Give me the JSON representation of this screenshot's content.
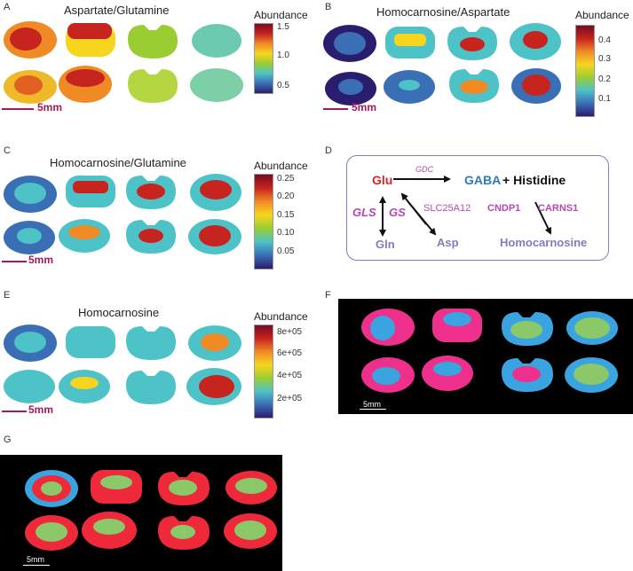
{
  "panels": {
    "A": {
      "label": "A",
      "title": "Aspartate/Glutamine",
      "legend_title": "Abundance",
      "ticks": [
        "1.5",
        "1.0",
        "0.5"
      ],
      "scale": "5mm"
    },
    "B": {
      "label": "B",
      "title": "Homocarnosine/Aspartate",
      "legend_title": "Abundance",
      "ticks": [
        "0.4",
        "0.3",
        "0.2",
        "0.1"
      ],
      "scale": "5mm"
    },
    "C": {
      "label": "C",
      "title": "Homocarnosine/Glutamine",
      "legend_title": "Abundance",
      "ticks": [
        "0.25",
        "0.20",
        "0.15",
        "0.10",
        "0.05"
      ],
      "scale": "5mm"
    },
    "D": {
      "label": "D"
    },
    "E": {
      "label": "E",
      "title": "Homocarnosine",
      "legend_title": "Abundance",
      "ticks": [
        "8e+05",
        "6e+05",
        "4e+05",
        "2e+05"
      ],
      "scale": "5mm"
    },
    "F": {
      "label": "F",
      "scale": "5mm"
    },
    "G": {
      "label": "G",
      "scale": "5mm"
    }
  },
  "pathway": {
    "glu": "Glu",
    "gaba": "GABA",
    "plus_histidine": "+ Histidine",
    "gln": "Gln",
    "asp": "Asp",
    "homocarnosine": "Homocarnosine",
    "gdc": "GDC",
    "gls": "GLS",
    "gs": "GS",
    "slc": "SLC25A12",
    "cndp1": "CNDP1",
    "carns1": "CARNS1"
  },
  "colors": {
    "colorbar": [
      "#7a0a22",
      "#c7241f",
      "#f08a25",
      "#f7d51f",
      "#9acd32",
      "#4ec3c7",
      "#3a6fb6",
      "#2b1d6e"
    ],
    "scale_bar": "#a3195b",
    "glu": "#d7262a",
    "gaba": "#2e78be",
    "purple": "#8a77c2",
    "enzyme": "#b04bb0",
    "seg_magenta": "#ee2f8c",
    "seg_green": "#8bc86a",
    "seg_blue": "#3aa4e0",
    "seg_red": "#ee2a3a"
  }
}
